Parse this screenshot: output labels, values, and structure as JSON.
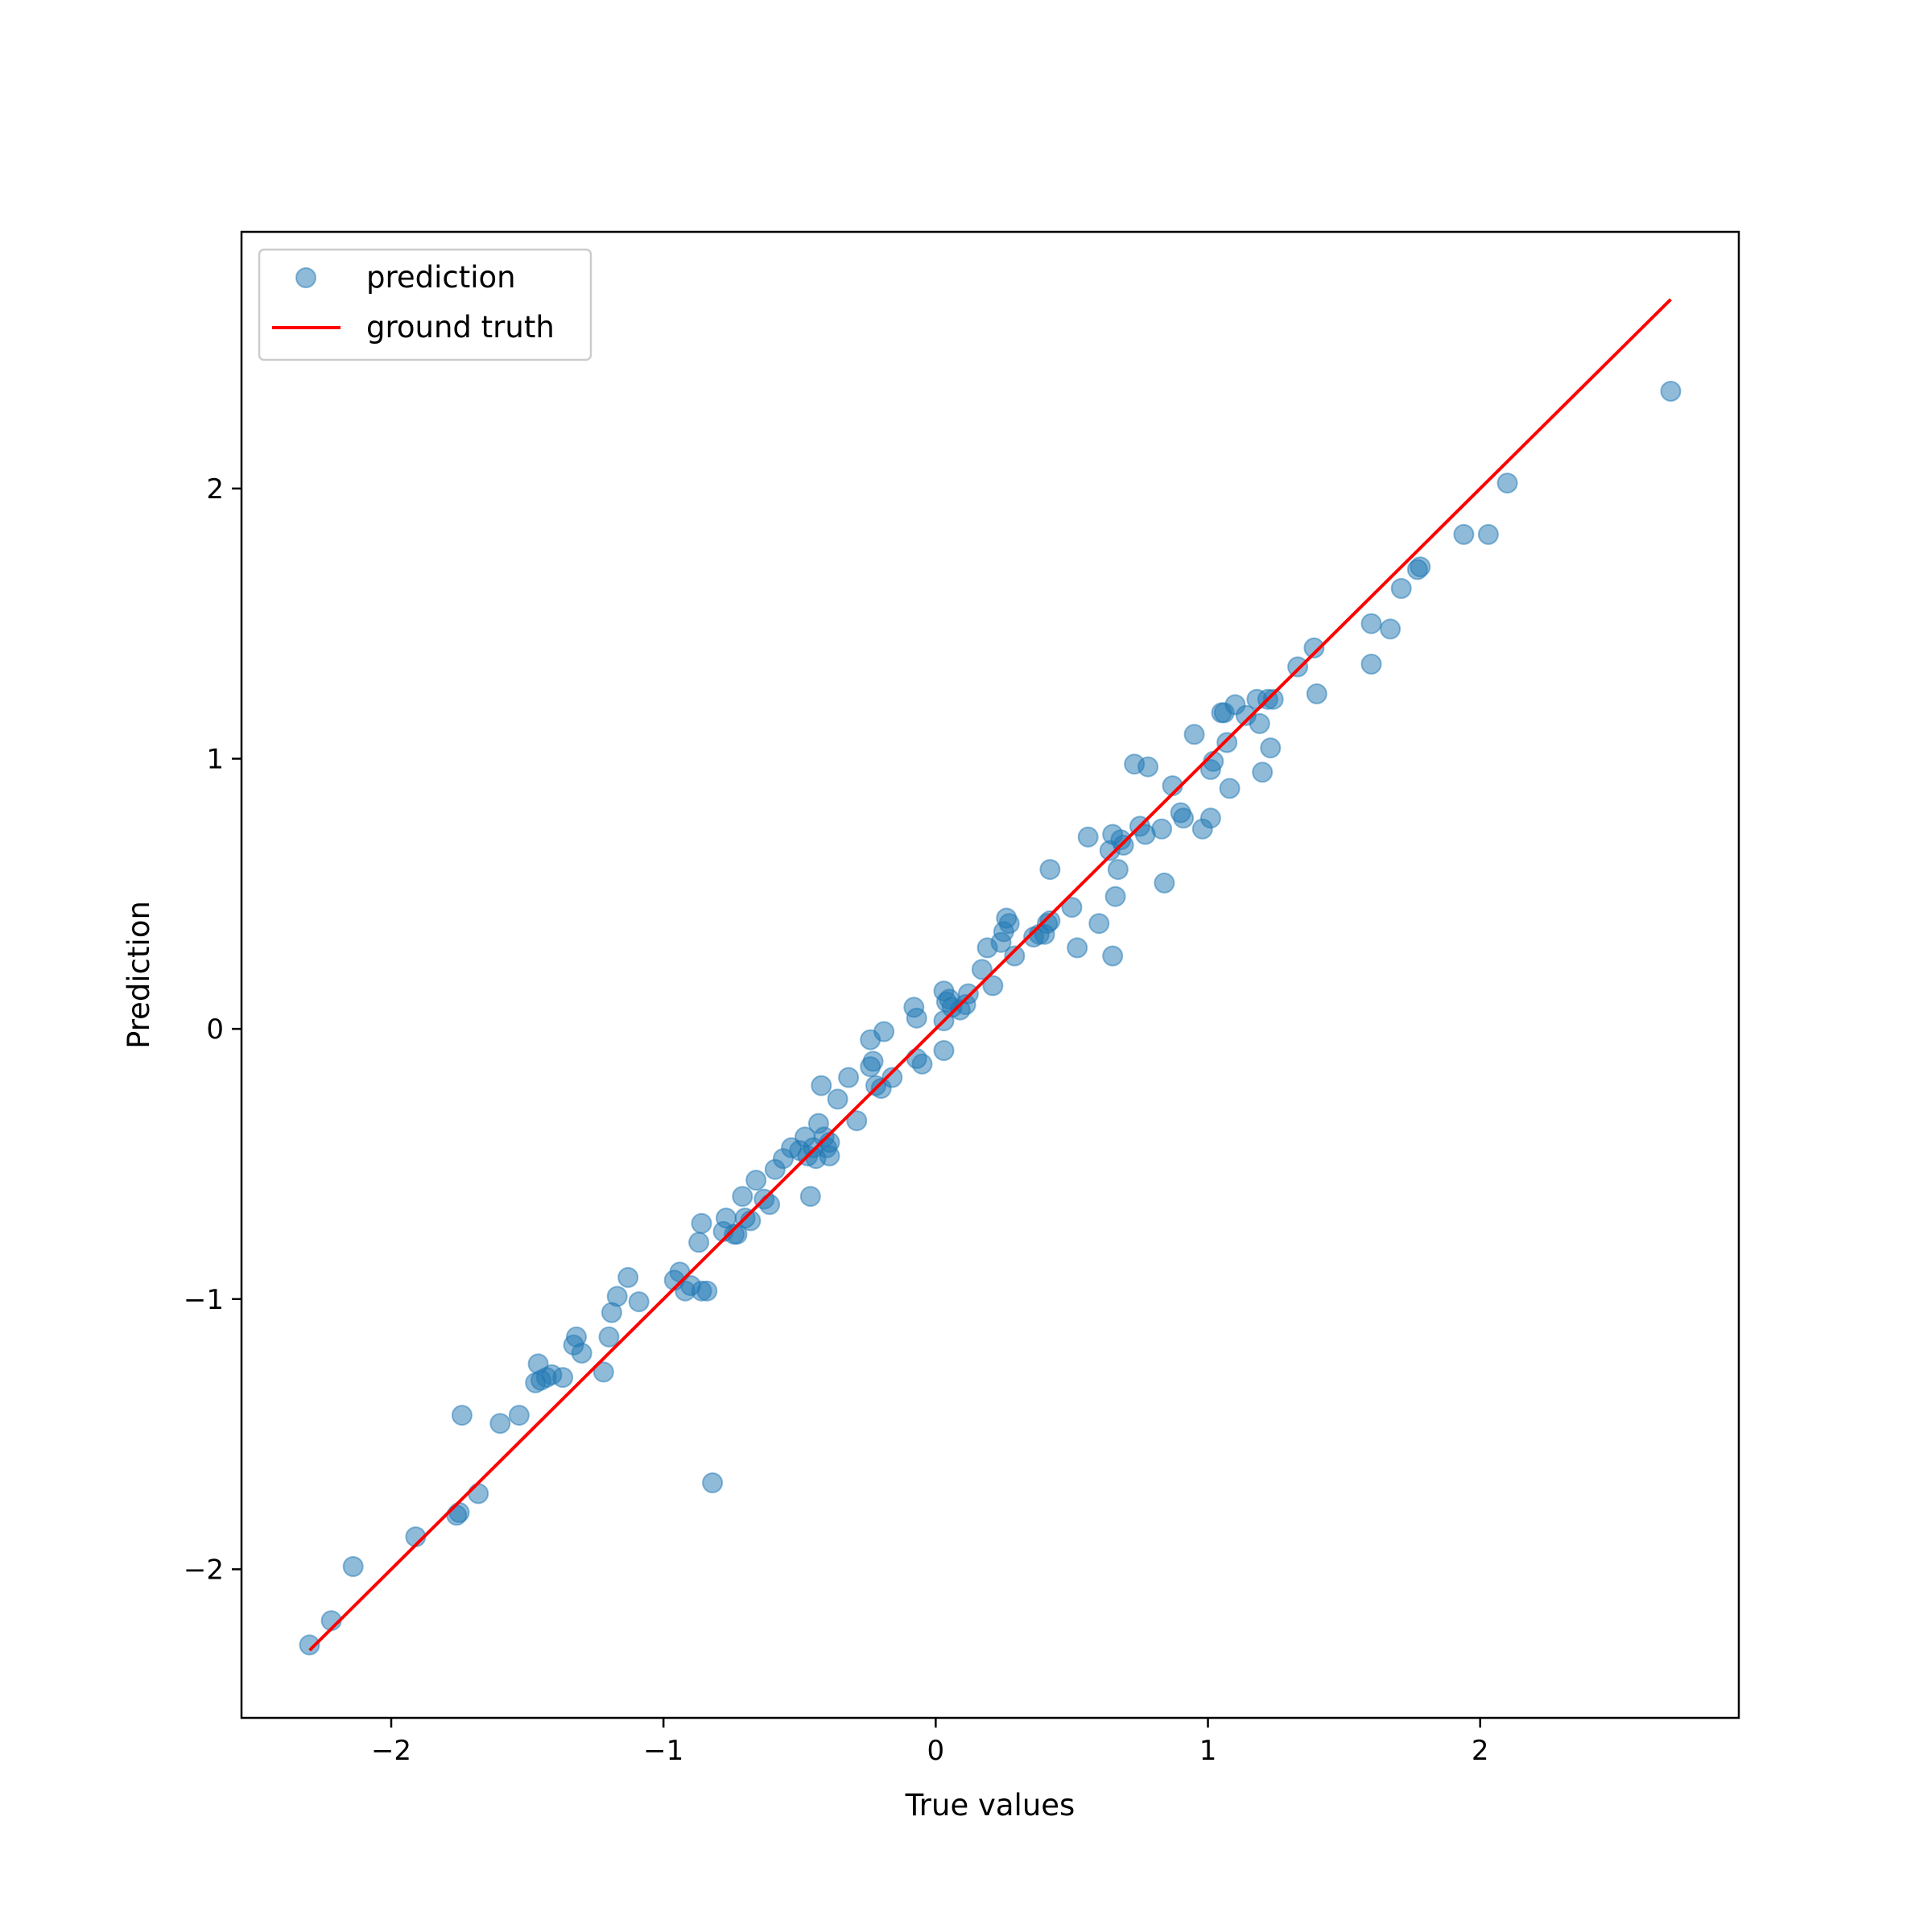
{
  "chart_data": {
    "type": "scatter",
    "title": "",
    "xlabel": "True values",
    "ylabel": "Prediction",
    "xlim": [
      -2.55,
      2.95
    ],
    "ylim": [
      -2.55,
      2.95
    ],
    "xticks": [
      {
        "value": -2,
        "label": "−2"
      },
      {
        "value": -1,
        "label": "−1"
      },
      {
        "value": 0,
        "label": "0"
      },
      {
        "value": 1,
        "label": "1"
      },
      {
        "value": 2,
        "label": "2"
      }
    ],
    "yticks": [
      {
        "value": -2,
        "label": "−2"
      },
      {
        "value": -1,
        "label": "−1"
      },
      {
        "value": 0,
        "label": "0"
      },
      {
        "value": 1,
        "label": "1"
      },
      {
        "value": 2,
        "label": "2"
      }
    ],
    "grid": false,
    "legend": {
      "position": "top-left",
      "entries": [
        "prediction",
        "ground truth"
      ]
    },
    "series": [
      {
        "name": "prediction",
        "kind": "scatter",
        "color": "#1f77b4",
        "alpha": 0.5,
        "points": [
          [
            -2.3,
            -2.28
          ],
          [
            -2.22,
            -2.19
          ],
          [
            -2.14,
            -1.99
          ],
          [
            -1.91,
            -1.88
          ],
          [
            -1.76,
            -1.8
          ],
          [
            -1.75,
            -1.79
          ],
          [
            -1.74,
            -1.43
          ],
          [
            -1.68,
            -1.72
          ],
          [
            -1.6,
            -1.46
          ],
          [
            -1.53,
            -1.43
          ],
          [
            -1.47,
            -1.31
          ],
          [
            -1.46,
            -1.24
          ],
          [
            -1.45,
            -1.3
          ],
          [
            -1.43,
            -1.29
          ],
          [
            -1.41,
            -1.28
          ],
          [
            -1.37,
            -1.29
          ],
          [
            -1.33,
            -1.17
          ],
          [
            -1.32,
            -1.14
          ],
          [
            -1.3,
            -1.2
          ],
          [
            -1.22,
            -1.27
          ],
          [
            -1.2,
            -1.14
          ],
          [
            -1.19,
            -1.05
          ],
          [
            -1.17,
            -0.99
          ],
          [
            -1.13,
            -0.92
          ],
          [
            -1.09,
            -1.01
          ],
          [
            -0.96,
            -0.93
          ],
          [
            -0.94,
            -0.9
          ],
          [
            -0.92,
            -0.97
          ],
          [
            -0.9,
            -0.95
          ],
          [
            -0.87,
            -0.79
          ],
          [
            -0.86,
            -0.72
          ],
          [
            -0.86,
            -0.97
          ],
          [
            -0.84,
            -0.97
          ],
          [
            -0.82,
            -1.68
          ],
          [
            -0.78,
            -0.75
          ],
          [
            -0.77,
            -0.7
          ],
          [
            -0.74,
            -0.76
          ],
          [
            -0.73,
            -0.76
          ],
          [
            -0.71,
            -0.62
          ],
          [
            -0.7,
            -0.7
          ],
          [
            -0.68,
            -0.71
          ],
          [
            -0.66,
            -0.56
          ],
          [
            -0.63,
            -0.63
          ],
          [
            -0.61,
            -0.65
          ],
          [
            -0.59,
            -0.52
          ],
          [
            -0.56,
            -0.48
          ],
          [
            -0.53,
            -0.44
          ],
          [
            -0.5,
            -0.45
          ],
          [
            -0.48,
            -0.4
          ],
          [
            -0.47,
            -0.47
          ],
          [
            -0.46,
            -0.62
          ],
          [
            -0.45,
            -0.44
          ],
          [
            -0.44,
            -0.48
          ],
          [
            -0.43,
            -0.35
          ],
          [
            -0.42,
            -0.21
          ],
          [
            -0.41,
            -0.4
          ],
          [
            -0.4,
            -0.44
          ],
          [
            -0.39,
            -0.42
          ],
          [
            -0.39,
            -0.47
          ],
          [
            -0.36,
            -0.26
          ],
          [
            -0.32,
            -0.18
          ],
          [
            -0.29,
            -0.34
          ],
          [
            -0.24,
            -0.04
          ],
          [
            -0.24,
            -0.14
          ],
          [
            -0.23,
            -0.12
          ],
          [
            -0.22,
            -0.21
          ],
          [
            -0.2,
            -0.22
          ],
          [
            -0.19,
            -0.01
          ],
          [
            -0.16,
            -0.18
          ],
          [
            -0.08,
            0.08
          ],
          [
            -0.07,
            0.04
          ],
          [
            -0.07,
            -0.11
          ],
          [
            -0.05,
            -0.13
          ],
          [
            0.03,
            0.14
          ],
          [
            0.03,
            0.03
          ],
          [
            0.03,
            -0.08
          ],
          [
            0.04,
            0.1
          ],
          [
            0.05,
            0.11
          ],
          [
            0.06,
            0.08
          ],
          [
            0.09,
            0.07
          ],
          [
            0.11,
            0.09
          ],
          [
            0.12,
            0.13
          ],
          [
            0.17,
            0.22
          ],
          [
            0.19,
            0.3
          ],
          [
            0.21,
            0.16
          ],
          [
            0.24,
            0.32
          ],
          [
            0.25,
            0.36
          ],
          [
            0.26,
            0.41
          ],
          [
            0.27,
            0.39
          ],
          [
            0.29,
            0.27
          ],
          [
            0.36,
            0.34
          ],
          [
            0.38,
            0.35
          ],
          [
            0.4,
            0.35
          ],
          [
            0.41,
            0.39
          ],
          [
            0.42,
            0.4
          ],
          [
            0.42,
            0.59
          ],
          [
            0.5,
            0.45
          ],
          [
            0.52,
            0.3
          ],
          [
            0.56,
            0.71
          ],
          [
            0.6,
            0.39
          ],
          [
            0.64,
            0.66
          ],
          [
            0.65,
            0.72
          ],
          [
            0.65,
            0.27
          ],
          [
            0.66,
            0.49
          ],
          [
            0.67,
            0.59
          ],
          [
            0.68,
            0.7
          ],
          [
            0.69,
            0.68
          ],
          [
            0.73,
            0.98
          ],
          [
            0.75,
            0.75
          ],
          [
            0.77,
            0.72
          ],
          [
            0.78,
            0.97
          ],
          [
            0.83,
            0.74
          ],
          [
            0.84,
            0.54
          ],
          [
            0.87,
            0.9
          ],
          [
            0.9,
            0.8
          ],
          [
            0.91,
            0.78
          ],
          [
            0.95,
            1.09
          ],
          [
            0.98,
            0.74
          ],
          [
            1.01,
            0.78
          ],
          [
            1.01,
            0.96
          ],
          [
            1.02,
            0.99
          ],
          [
            1.05,
            1.17
          ],
          [
            1.06,
            1.17
          ],
          [
            1.07,
            1.06
          ],
          [
            1.08,
            0.89
          ],
          [
            1.1,
            1.2
          ],
          [
            1.14,
            1.16
          ],
          [
            1.18,
            1.22
          ],
          [
            1.19,
            1.13
          ],
          [
            1.2,
            0.95
          ],
          [
            1.22,
            1.22
          ],
          [
            1.23,
            1.04
          ],
          [
            1.24,
            1.22
          ],
          [
            1.33,
            1.34
          ],
          [
            1.39,
            1.41
          ],
          [
            1.4,
            1.24
          ],
          [
            1.6,
            1.35
          ],
          [
            1.6,
            1.5
          ],
          [
            1.67,
            1.48
          ],
          [
            1.71,
            1.63
          ],
          [
            1.77,
            1.7
          ],
          [
            1.78,
            1.71
          ],
          [
            1.94,
            1.83
          ],
          [
            2.03,
            1.83
          ],
          [
            2.1,
            2.02
          ],
          [
            2.7,
            2.36
          ]
        ]
      },
      {
        "name": "ground truth",
        "kind": "line",
        "color": "#ff0000",
        "points": [
          [
            -2.3,
            -2.3
          ],
          [
            2.7,
            2.7
          ]
        ]
      }
    ]
  }
}
